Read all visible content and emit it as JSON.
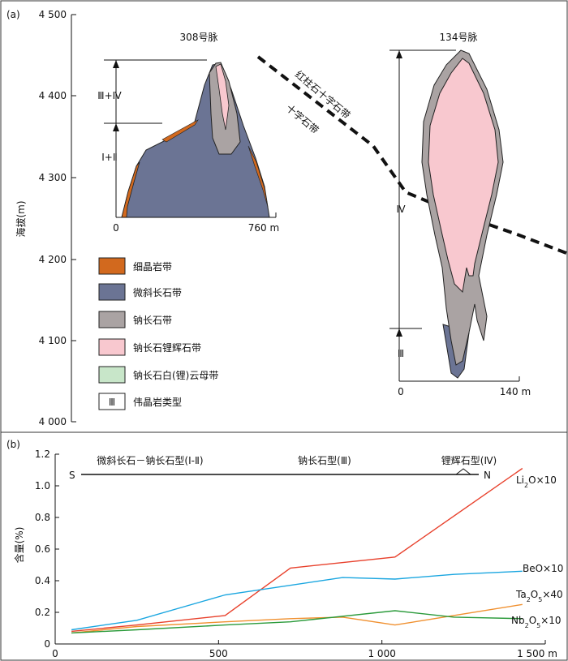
{
  "chart_data": [
    {
      "type": "diagram",
      "panel_label": "(a)",
      "ylabel": "海拔(m)",
      "y_ticks": [
        "4 000",
        "4 100",
        "4 200",
        "4 300",
        "4 400",
        "4 500"
      ],
      "vein_308": {
        "title": "308号脉",
        "x_ticks": [
          "0",
          "760 m"
        ],
        "zone_labels": [
          "Ⅲ+Ⅳ",
          "Ⅰ+Ⅱ"
        ]
      },
      "vein_134": {
        "title": "134号脉",
        "x_ticks": [
          "0",
          "140 m"
        ],
        "zone_labels": [
          "Ⅳ",
          "Ⅲ"
        ]
      },
      "fault_labels": [
        "红柱石十字石带",
        "十字石带"
      ],
      "legend": [
        {
          "label": "细晶岩带",
          "color": "#d2691e"
        },
        {
          "label": "微斜长石带",
          "color": "#6b7494"
        },
        {
          "label": "钠长石带",
          "color": "#aaa3a3"
        },
        {
          "label": "钠长石锂辉石带",
          "color": "#f8c8cf"
        },
        {
          "label": "钠长石白(锂)云母带",
          "color": "#c8e6c9"
        },
        {
          "label": "伟晶岩类型",
          "color": "#ffffff",
          "symbol": "Ⅲ"
        }
      ]
    },
    {
      "type": "line",
      "panel_label": "(b)",
      "ylabel": "含量(%)",
      "xlim": [
        0,
        1500
      ],
      "ylim": [
        0,
        1.2
      ],
      "x_ticks": [
        "0",
        "500",
        "1 000",
        "1 500 m"
      ],
      "y_ticks": [
        "0",
        "0.2",
        "0.4",
        "0.6",
        "0.8",
        "1.0",
        "1.2"
      ],
      "types_bar": {
        "left": "S",
        "right": "N",
        "labels": [
          "微斜长石－钠长石型(Ⅰ-Ⅱ)",
          "钠长石型(Ⅲ)",
          "锂辉石型(Ⅳ)"
        ]
      },
      "series": [
        {
          "name": "Li2O×10",
          "label_main": "Li",
          "label_sub": "2",
          "label_tail": "O×10",
          "color": "#e8412c",
          "x": [
            50,
            250,
            520,
            720,
            1040,
            1430
          ],
          "y": [
            0.08,
            0.12,
            0.18,
            0.48,
            0.55,
            1.11
          ]
        },
        {
          "name": "BeO×10",
          "label_main": "BeO×10",
          "label_sub": "",
          "label_tail": "",
          "color": "#1aa6e0",
          "x": [
            50,
            250,
            520,
            880,
            1040,
            1220,
            1430
          ],
          "y": [
            0.09,
            0.15,
            0.31,
            0.42,
            0.41,
            0.44,
            0.46
          ]
        },
        {
          "name": "Ta2O5×40",
          "label_main": "Ta",
          "label_sub": "2",
          "label_tail": "O",
          "label_sub2": "5",
          "label_tail2": "×40",
          "color": "#f0902f",
          "x": [
            50,
            250,
            520,
            720,
            880,
            1040,
            1430
          ],
          "y": [
            0.07,
            0.11,
            0.14,
            0.16,
            0.17,
            0.12,
            0.25
          ]
        },
        {
          "name": "Nb2O5×10",
          "label_main": "Nb",
          "label_sub": "2",
          "label_tail": "O",
          "label_sub2": "5",
          "label_tail2": "×10",
          "color": "#2a9a3a",
          "x": [
            50,
            250,
            520,
            720,
            1040,
            1220,
            1430
          ],
          "y": [
            0.07,
            0.09,
            0.12,
            0.14,
            0.21,
            0.17,
            0.16
          ]
        }
      ]
    }
  ]
}
